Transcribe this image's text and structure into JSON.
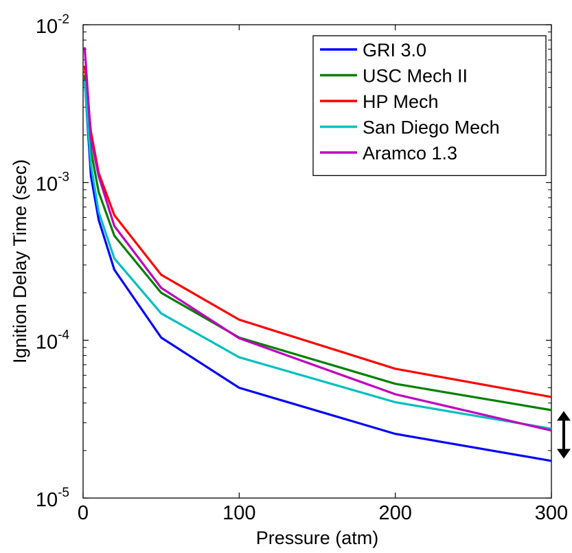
{
  "chart_data": {
    "type": "line",
    "xlabel": "Pressure (atm)",
    "ylabel": "Ignition Delay Time (sec)",
    "xlim": [
      0,
      300
    ],
    "ylim": [
      1e-05,
      0.01
    ],
    "yscale": "log",
    "xticks": [
      "0",
      "100",
      "200",
      "300"
    ],
    "yticks": [
      {
        "value": 0.01,
        "base": "10",
        "exp": "-2"
      },
      {
        "value": 0.001,
        "base": "10",
        "exp": "-3"
      },
      {
        "value": 0.0001,
        "base": "10",
        "exp": "-4"
      },
      {
        "value": 1e-05,
        "base": "10",
        "exp": "-5"
      }
    ],
    "grid": false,
    "legend_position": "top-right",
    "x": [
      1,
      5,
      10,
      20,
      50,
      100,
      200,
      300
    ],
    "series": [
      {
        "name": "GRI 3.0",
        "color": "#0000ff",
        "values": [
          0.0045,
          0.0011,
          0.00058,
          0.00028,
          0.000104,
          5e-05,
          2.55e-05,
          1.72e-05
        ]
      },
      {
        "name": "USC Mech II",
        "color": "#008000",
        "values": [
          0.0048,
          0.0016,
          0.00087,
          0.00046,
          0.0002,
          0.000104,
          5.3e-05,
          3.61e-05
        ]
      },
      {
        "name": "HP Mech",
        "color": "#ff0000",
        "values": [
          0.0055,
          0.0021,
          0.00115,
          0.00062,
          0.00026,
          0.000135,
          6.6e-05,
          4.37e-05
        ]
      },
      {
        "name": "San Diego Mech",
        "color": "#00bfbf",
        "values": [
          0.0044,
          0.0013,
          0.00065,
          0.00033,
          0.000148,
          7.8e-05,
          4.05e-05,
          2.75e-05
        ]
      },
      {
        "name": "Aramco 1.3",
        "color": "#bf00bf",
        "values": [
          0.0072,
          0.0019,
          0.0011,
          0.00053,
          0.000215,
          0.000103,
          4.55e-05,
          2.68e-05
        ]
      }
    ],
    "annotations": [
      {
        "type": "double-arrow",
        "x": 300,
        "y_range": [
          1.78e-05,
          3.56e-05
        ]
      }
    ]
  }
}
